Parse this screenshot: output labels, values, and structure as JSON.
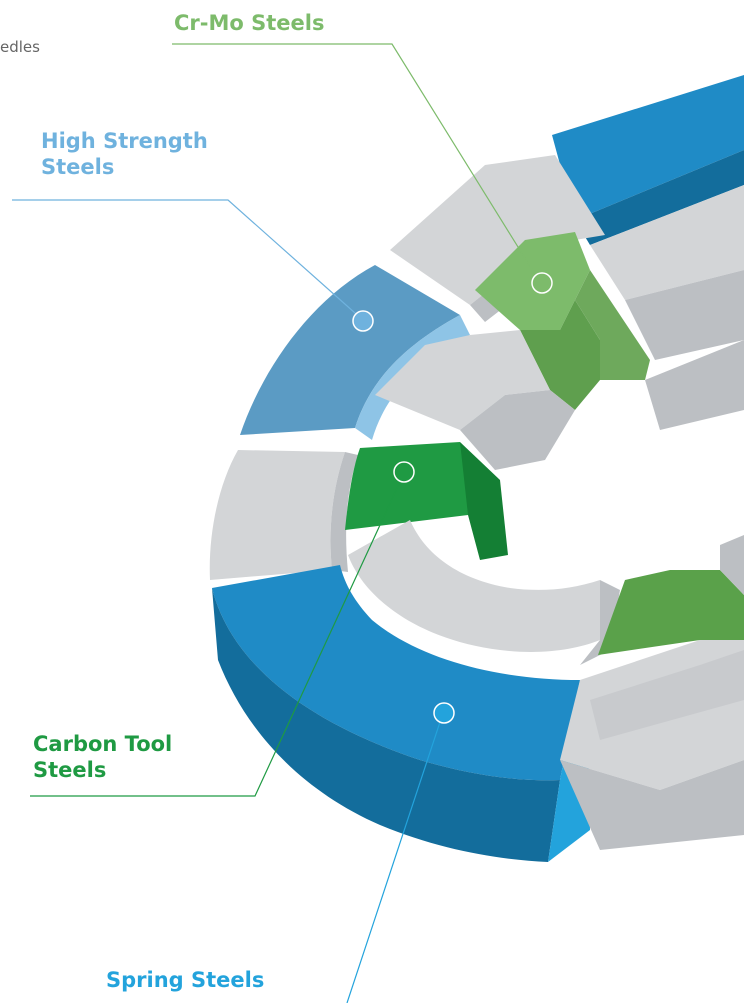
{
  "corner_text": "edles",
  "colors": {
    "crmo": "#7dbb6b",
    "high_strength": "#6fb2de",
    "carbon_tool": "#1f9a43",
    "spring": "#23a3dc",
    "gray_light": "#d3d5d7",
    "gray_mid": "#bcbfc3",
    "gray_dark": "#9ea2a7",
    "blue_top": "#1f8bc6",
    "blue_side": "#136d9c",
    "steel_blue": "#5b9bc4"
  },
  "labels": {
    "crmo": "Cr-Mo Steels",
    "high_strength_line1": "High Strength",
    "high_strength_line2": "Steels",
    "carbon_tool_line1": "Carbon Tool",
    "carbon_tool_line2": "Steels",
    "spring": "Spring Steels"
  }
}
